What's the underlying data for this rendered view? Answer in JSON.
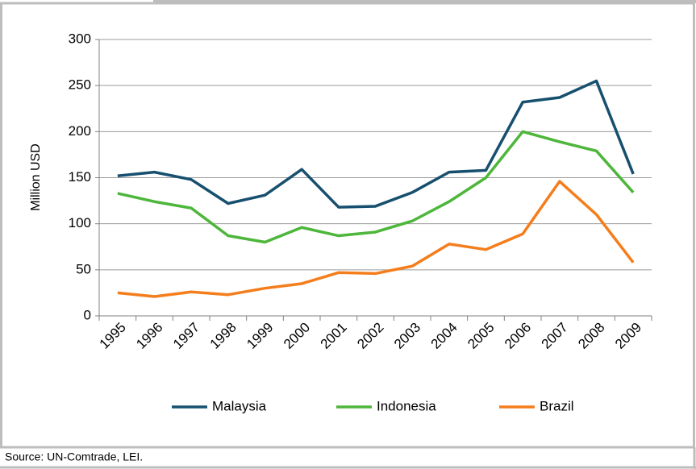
{
  "chart_data": {
    "type": "line",
    "y_label": "Million USD",
    "categories": [
      "1995",
      "1996",
      "1997",
      "1998",
      "1999",
      "2000",
      "2001",
      "2002",
      "2003",
      "2004",
      "2005",
      "2006",
      "2007",
      "2008",
      "2009"
    ],
    "series": [
      {
        "name": "Malaysia",
        "color": "#17506f",
        "values": [
          152,
          156,
          148,
          122,
          131,
          159,
          118,
          119,
          134,
          156,
          158,
          232,
          237,
          255,
          154
        ]
      },
      {
        "name": "Indonesia",
        "color": "#4db63b",
        "values": [
          133,
          124,
          117,
          87,
          80,
          96,
          87,
          91,
          103,
          124,
          150,
          200,
          189,
          179,
          134
        ]
      },
      {
        "name": "Brazil",
        "color": "#f47d1c",
        "values": [
          25,
          21,
          26,
          23,
          30,
          35,
          47,
          46,
          54,
          78,
          72,
          89,
          146,
          110,
          58
        ]
      }
    ],
    "ylim": [
      0,
      300
    ],
    "yticks": [
      0,
      50,
      100,
      150,
      200,
      250,
      300
    ],
    "grid": true,
    "legend": "bottom",
    "source": "Source: UN-Comtrade, LEI."
  }
}
